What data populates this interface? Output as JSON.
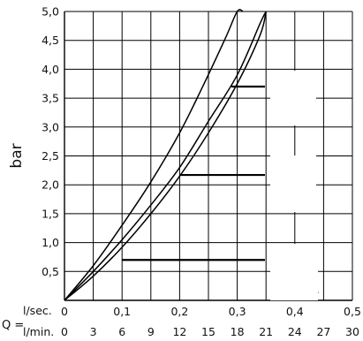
{
  "chart_data": {
    "type": "line",
    "ylabel": "bar",
    "y_ticks": [
      "0,5",
      "1,0",
      "1,5",
      "2,0",
      "2,5",
      "3,0",
      "3,5",
      "4,0",
      "4,5",
      "5,0"
    ],
    "ylim": [
      0,
      5
    ],
    "xlim": [
      0,
      0.5
    ],
    "x_axis_label_prefix": "Q =",
    "x_axis_primary": {
      "unit": "l/sec.",
      "ticks": [
        "0",
        "0,1",
        "0,2",
        "0,3",
        "0,4",
        "0,5"
      ]
    },
    "x_axis_secondary": {
      "unit": "l/min.",
      "ticks": [
        "0",
        "3",
        "6",
        "9",
        "12",
        "15",
        "18",
        "21",
        "24",
        "27",
        "30"
      ]
    },
    "grid": true,
    "series": [
      {
        "x": [
          0,
          0.05,
          0.1,
          0.15,
          0.2,
          0.24,
          0.28,
          0.3,
          0.31
        ],
        "y": [
          0,
          0.6,
          1.3,
          2.05,
          2.9,
          3.7,
          4.55,
          5.0,
          5.0
        ]
      },
      {
        "x": [
          0,
          0.05,
          0.1,
          0.15,
          0.2,
          0.25,
          0.3,
          0.34,
          0.35
        ],
        "y": [
          0,
          0.5,
          1.05,
          1.65,
          2.3,
          3.1,
          3.9,
          4.8,
          5.0
        ]
      },
      {
        "x": [
          0,
          0.05,
          0.1,
          0.15,
          0.2,
          0.25,
          0.3,
          0.34,
          0.35
        ],
        "y": [
          0,
          0.42,
          0.92,
          1.5,
          2.15,
          2.9,
          3.75,
          4.6,
          5.0
        ]
      }
    ],
    "annotations": [
      {
        "name": "spray-mode-rain",
        "icon": "rain-spray-icon",
        "x_start": 0.1,
        "y": 0.7
      },
      {
        "name": "spray-mode-dots",
        "icon": "dot-spray-icon",
        "x_start": 0.2,
        "y": 2.17
      },
      {
        "name": "spray-mode-massage",
        "icon": "massage-spray-icon",
        "x_start": 0.29,
        "y": 3.7
      }
    ]
  }
}
